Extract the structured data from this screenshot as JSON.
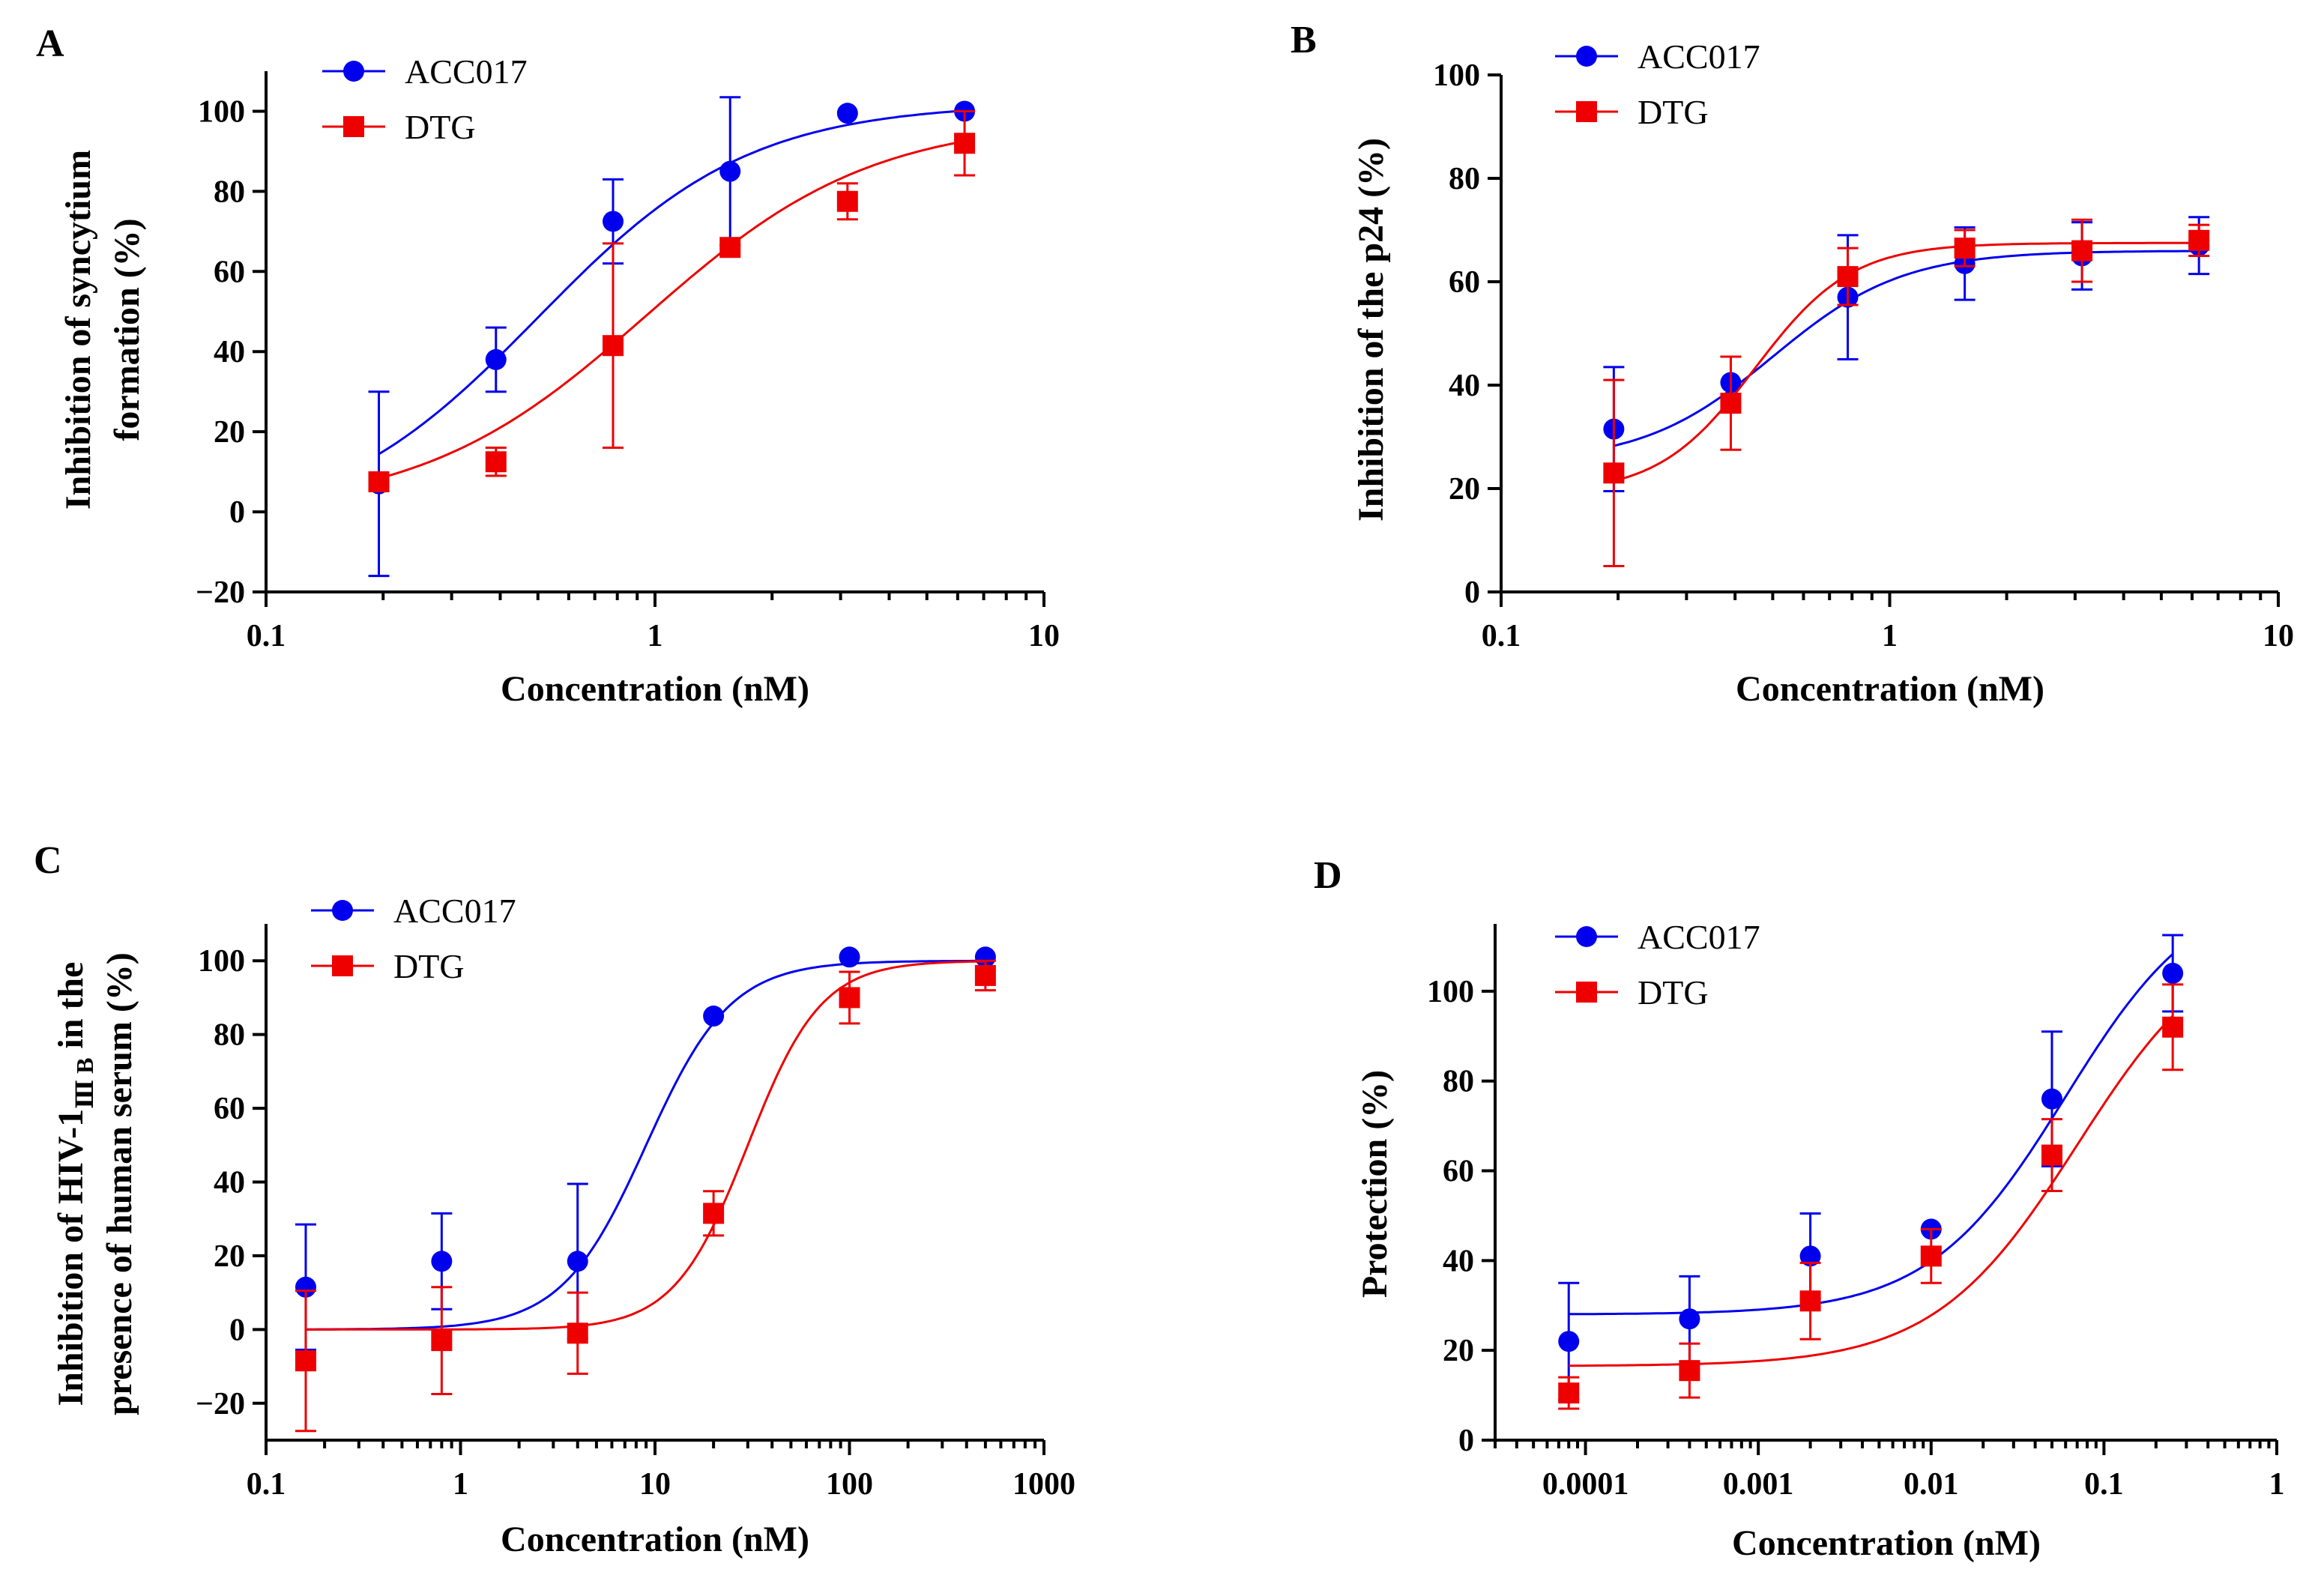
{
  "figure": {
    "colors": {
      "ACC017": "#0000ee",
      "DTG": "#ee0000"
    },
    "legend_labels": [
      "ACC017",
      "DTG"
    ]
  },
  "chart_data": [
    {
      "panel": "A",
      "type": "line",
      "xscale": "log",
      "xlim": [
        0.1,
        10
      ],
      "ylim": [
        -20,
        110
      ],
      "xticks": [
        0.1,
        1,
        10
      ],
      "xtick_labels": [
        "0.1",
        "1",
        "10"
      ],
      "yticks": [
        -20,
        0,
        20,
        40,
        60,
        80,
        100
      ],
      "ytick_labels": [
        "−20",
        "0",
        "20",
        "40",
        "60",
        "80",
        "100"
      ],
      "xlabel": "Concentration (nM)",
      "ylabel": [
        "Inhibition of syncytium",
        "formation (%)"
      ],
      "legend": "top-left",
      "x": [
        0.195,
        0.39,
        0.78,
        1.56,
        3.125,
        6.25
      ],
      "series": [
        {
          "name": "ACC017",
          "marker": "circle",
          "values": [
            7,
            38,
            72.5,
            85,
            99.5,
            100
          ],
          "err": [
            23,
            8,
            10.5,
            18.5,
            0,
            0
          ],
          "fit": {
            "bottom": -5,
            "top": 102,
            "ec50": 0.5,
            "hill": 1.6
          }
        },
        {
          "name": "DTG",
          "marker": "square",
          "values": [
            7.5,
            12.5,
            41.5,
            66,
            77.5,
            92
          ],
          "err": [
            0,
            3.5,
            25.5,
            0,
            4.5,
            8
          ],
          "fit": {
            "bottom": 0,
            "top": 98,
            "ec50": 0.95,
            "hill": 1.5
          }
        }
      ]
    },
    {
      "panel": "B",
      "type": "line",
      "xscale": "log",
      "xlim": [
        0.1,
        10
      ],
      "ylim": [
        0,
        100
      ],
      "xticks": [
        0.1,
        1,
        10
      ],
      "xtick_labels": [
        "0.1",
        "1",
        "10"
      ],
      "yticks": [
        0,
        20,
        40,
        60,
        80,
        100
      ],
      "ytick_labels": [
        "0",
        "20",
        "40",
        "60",
        "80",
        "100"
      ],
      "xlabel": "Concentration (nM)",
      "ylabel": [
        "Inhibition of the p24 (%)"
      ],
      "legend": "top-left",
      "x": [
        0.195,
        0.39,
        0.78,
        1.56,
        3.125,
        6.25
      ],
      "series": [
        {
          "name": "ACC017",
          "marker": "circle",
          "values": [
            31.5,
            40.5,
            57,
            63.5,
            65,
            67
          ],
          "err": [
            12,
            5,
            12,
            7,
            6.5,
            5.5
          ],
          "fit": {
            "bottom": 25,
            "top": 66,
            "ec50": 0.5,
            "hill": 2.6
          }
        },
        {
          "name": "DTG",
          "marker": "square",
          "values": [
            23,
            36.5,
            61,
            66.5,
            66,
            68
          ],
          "err": [
            18,
            9,
            5.5,
            3.5,
            6,
            3
          ],
          "fit": {
            "bottom": 19,
            "top": 67.5,
            "ec50": 0.45,
            "hill": 3.5
          }
        }
      ]
    },
    {
      "panel": "C",
      "type": "line",
      "xscale": "log",
      "xlim": [
        0.1,
        1000
      ],
      "ylim": [
        -30,
        110
      ],
      "xticks": [
        0.1,
        1,
        10,
        100,
        1000
      ],
      "xtick_labels": [
        "0.1",
        "1",
        "10",
        "100",
        "1000"
      ],
      "yticks": [
        -20,
        0,
        20,
        40,
        60,
        80,
        100
      ],
      "ytick_labels": [
        "−20",
        "0",
        "20",
        "40",
        "60",
        "80",
        "100"
      ],
      "xlabel": "Concentration (nM)",
      "ylabel_line1_prefix": "Inhibition of HIV-1",
      "ylabel_line1_subscript": "Ⅲ B",
      "ylabel_line1_suffix": " in the",
      "ylabel_line2": "presence of human serum (%)",
      "legend": "top-left",
      "x": [
        0.16,
        0.8,
        4,
        20,
        100,
        500
      ],
      "series": [
        {
          "name": "ACC017",
          "marker": "circle",
          "values": [
            11.5,
            18.5,
            18.5,
            85,
            101,
            101
          ],
          "err": [
            17,
            13,
            21,
            0,
            0,
            0
          ],
          "fit": {
            "bottom": 0,
            "top": 100,
            "ec50": 9,
            "hill": 2
          }
        },
        {
          "name": "DTG",
          "marker": "square",
          "values": [
            -8.5,
            -3,
            -1,
            31.5,
            90,
            96
          ],
          "err": [
            19,
            14.5,
            11,
            6,
            7,
            4
          ],
          "fit": {
            "bottom": 0,
            "top": 100,
            "ec50": 30,
            "hill": 2.3
          }
        }
      ]
    },
    {
      "panel": "D",
      "type": "line",
      "xscale": "log",
      "xlim": [
        3e-05,
        1
      ],
      "ylim": [
        0,
        115
      ],
      "xticks": [
        0.0001,
        0.001,
        0.01,
        0.1,
        1
      ],
      "xtick_labels": [
        "0.0001",
        "0.001",
        "0.01",
        "0.1",
        "1"
      ],
      "yticks": [
        0,
        20,
        40,
        60,
        80,
        100
      ],
      "ytick_labels": [
        "0",
        "20",
        "40",
        "60",
        "80",
        "100"
      ],
      "xlabel": "Concentration (nM)",
      "ylabel": [
        "Protection (%)"
      ],
      "legend": "top-left",
      "x": [
        8e-05,
        0.0004,
        0.002,
        0.01,
        0.05,
        0.25
      ],
      "series": [
        {
          "name": "ACC017",
          "marker": "circle",
          "values": [
            22,
            27,
            41,
            47,
            76,
            104
          ],
          "err": [
            13,
            9.5,
            9.5,
            0,
            15,
            8.5
          ],
          "fit": {
            "bottom": 28,
            "top": 125,
            "ec50": 0.06,
            "hill": 1.1
          }
        },
        {
          "name": "DTG",
          "marker": "square",
          "values": [
            10.5,
            15.5,
            31,
            41,
            63.5,
            92
          ],
          "err": [
            3.5,
            6,
            8.5,
            6,
            8,
            9.5
          ],
          "fit": {
            "bottom": 16.5,
            "top": 115,
            "ec50": 0.07,
            "hill": 1.05
          }
        }
      ]
    }
  ]
}
